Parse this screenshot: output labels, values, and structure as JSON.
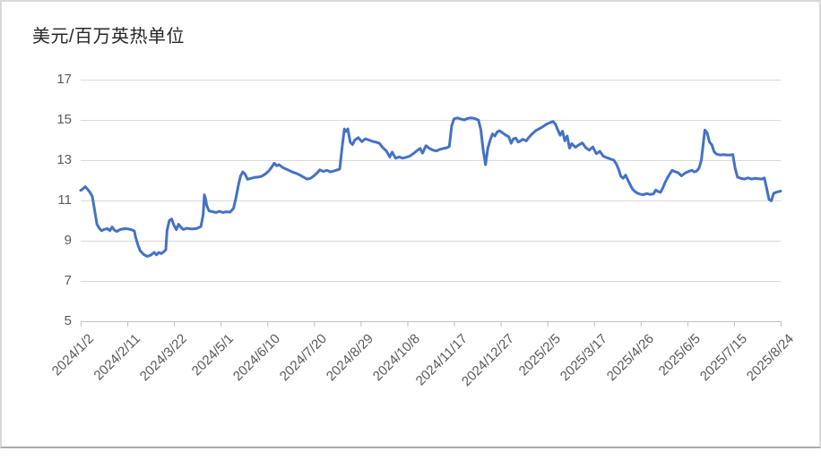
{
  "chart_data": {
    "type": "line",
    "title": "美元/百万英热单位",
    "xlabel": "",
    "ylabel": "",
    "grid": true,
    "legend": "none",
    "ylim": [
      5,
      17
    ],
    "y_ticks": [
      5,
      7,
      9,
      11,
      13,
      15,
      17
    ],
    "x_tick_labels": [
      "2024/1/2",
      "2024/2/11",
      "2024/3/22",
      "2024/5/1",
      "2024/6/10",
      "2024/7/20",
      "2024/8/29",
      "2024/10/8",
      "2024/11/17",
      "2024/12/27",
      "2025/2/5",
      "2025/3/17",
      "2025/4/26",
      "2025/6/5",
      "2025/7/15",
      "2025/8/24"
    ],
    "x_unit": "days_since_first_tick",
    "x_range_days": [
      0,
      600
    ],
    "line_color": "#4472C4",
    "grid_color": "#d9d9d9",
    "axis_color": "#bfbfbf",
    "label_color": "#595959",
    "points": [
      [
        0,
        11.5
      ],
      [
        2,
        11.58
      ],
      [
        4,
        11.68
      ],
      [
        6,
        11.55
      ],
      [
        8,
        11.4
      ],
      [
        10,
        11.2
      ],
      [
        12,
        10.5
      ],
      [
        14,
        9.82
      ],
      [
        16,
        9.62
      ],
      [
        18,
        9.5
      ],
      [
        20,
        9.56
      ],
      [
        23,
        9.6
      ],
      [
        25,
        9.5
      ],
      [
        27,
        9.68
      ],
      [
        29,
        9.52
      ],
      [
        31,
        9.46
      ],
      [
        34,
        9.56
      ],
      [
        38,
        9.6
      ],
      [
        41,
        9.58
      ],
      [
        44,
        9.54
      ],
      [
        46,
        9.48
      ],
      [
        47,
        9.2
      ],
      [
        49,
        8.8
      ],
      [
        51,
        8.5
      ],
      [
        54,
        8.32
      ],
      [
        57,
        8.22
      ],
      [
        60,
        8.28
      ],
      [
        63,
        8.42
      ],
      [
        65,
        8.3
      ],
      [
        67,
        8.42
      ],
      [
        69,
        8.36
      ],
      [
        71,
        8.44
      ],
      [
        73,
        8.55
      ],
      [
        74,
        9.5
      ],
      [
        76,
        10.0
      ],
      [
        78,
        10.08
      ],
      [
        80,
        9.76
      ],
      [
        82,
        9.55
      ],
      [
        84,
        9.82
      ],
      [
        86,
        9.66
      ],
      [
        88,
        9.56
      ],
      [
        91,
        9.62
      ],
      [
        95,
        9.58
      ],
      [
        99,
        9.6
      ],
      [
        103,
        9.7
      ],
      [
        105,
        10.3
      ],
      [
        106,
        11.28
      ],
      [
        107,
        11.1
      ],
      [
        108,
        10.75
      ],
      [
        110,
        10.48
      ],
      [
        113,
        10.44
      ],
      [
        116,
        10.4
      ],
      [
        119,
        10.46
      ],
      [
        122,
        10.4
      ],
      [
        125,
        10.44
      ],
      [
        128,
        10.42
      ],
      [
        131,
        10.6
      ],
      [
        133,
        11.1
      ],
      [
        135,
        11.7
      ],
      [
        137,
        12.2
      ],
      [
        139,
        12.42
      ],
      [
        141,
        12.3
      ],
      [
        143,
        12.05
      ],
      [
        146,
        12.1
      ],
      [
        149,
        12.14
      ],
      [
        152,
        12.16
      ],
      [
        155,
        12.2
      ],
      [
        158,
        12.3
      ],
      [
        161,
        12.45
      ],
      [
        163,
        12.6
      ],
      [
        166,
        12.85
      ],
      [
        168,
        12.72
      ],
      [
        170,
        12.78
      ],
      [
        173,
        12.64
      ],
      [
        176,
        12.56
      ],
      [
        179,
        12.48
      ],
      [
        182,
        12.4
      ],
      [
        185,
        12.34
      ],
      [
        188,
        12.26
      ],
      [
        191,
        12.16
      ],
      [
        194,
        12.06
      ],
      [
        197,
        12.1
      ],
      [
        200,
        12.22
      ],
      [
        203,
        12.38
      ],
      [
        205,
        12.52
      ],
      [
        208,
        12.44
      ],
      [
        211,
        12.5
      ],
      [
        214,
        12.42
      ],
      [
        217,
        12.46
      ],
      [
        220,
        12.52
      ],
      [
        222,
        12.56
      ],
      [
        224,
        13.6
      ],
      [
        226,
        14.55
      ],
      [
        227,
        14.42
      ],
      [
        229,
        14.55
      ],
      [
        231,
        13.9
      ],
      [
        233,
        13.78
      ],
      [
        235,
        14.0
      ],
      [
        238,
        14.12
      ],
      [
        241,
        13.92
      ],
      [
        244,
        14.06
      ],
      [
        247,
        14.0
      ],
      [
        250,
        13.94
      ],
      [
        253,
        13.9
      ],
      [
        256,
        13.84
      ],
      [
        259,
        13.62
      ],
      [
        262,
        13.46
      ],
      [
        265,
        13.16
      ],
      [
        267,
        13.4
      ],
      [
        270,
        13.1
      ],
      [
        273,
        13.16
      ],
      [
        276,
        13.1
      ],
      [
        279,
        13.14
      ],
      [
        282,
        13.2
      ],
      [
        285,
        13.32
      ],
      [
        288,
        13.46
      ],
      [
        291,
        13.58
      ],
      [
        293,
        13.35
      ],
      [
        296,
        13.72
      ],
      [
        299,
        13.58
      ],
      [
        302,
        13.5
      ],
      [
        305,
        13.46
      ],
      [
        308,
        13.54
      ],
      [
        311,
        13.58
      ],
      [
        314,
        13.62
      ],
      [
        316,
        13.68
      ],
      [
        318,
        14.7
      ],
      [
        320,
        15.05
      ],
      [
        323,
        15.1
      ],
      [
        326,
        15.04
      ],
      [
        329,
        15.0
      ],
      [
        331,
        15.06
      ],
      [
        334,
        15.1
      ],
      [
        337,
        15.08
      ],
      [
        339,
        15.04
      ],
      [
        341,
        14.98
      ],
      [
        343,
        14.5
      ],
      [
        345,
        13.5
      ],
      [
        347,
        12.78
      ],
      [
        349,
        13.6
      ],
      [
        351,
        14.0
      ],
      [
        353,
        14.3
      ],
      [
        355,
        14.2
      ],
      [
        357,
        14.4
      ],
      [
        359,
        14.46
      ],
      [
        361,
        14.38
      ],
      [
        364,
        14.26
      ],
      [
        367,
        14.16
      ],
      [
        369,
        13.84
      ],
      [
        371,
        14.06
      ],
      [
        373,
        14.1
      ],
      [
        375,
        13.9
      ],
      [
        377,
        13.96
      ],
      [
        379,
        14.04
      ],
      [
        382,
        13.96
      ],
      [
        384,
        14.12
      ],
      [
        387,
        14.3
      ],
      [
        390,
        14.46
      ],
      [
        393,
        14.56
      ],
      [
        396,
        14.66
      ],
      [
        399,
        14.78
      ],
      [
        402,
        14.86
      ],
      [
        405,
        14.92
      ],
      [
        407,
        14.78
      ],
      [
        409,
        14.5
      ],
      [
        411,
        14.24
      ],
      [
        413,
        14.44
      ],
      [
        415,
        13.96
      ],
      [
        417,
        14.2
      ],
      [
        419,
        13.6
      ],
      [
        421,
        13.82
      ],
      [
        424,
        13.64
      ],
      [
        427,
        13.76
      ],
      [
        430,
        13.86
      ],
      [
        433,
        13.62
      ],
      [
        436,
        13.5
      ],
      [
        439,
        13.66
      ],
      [
        442,
        13.32
      ],
      [
        445,
        13.44
      ],
      [
        448,
        13.2
      ],
      [
        451,
        13.12
      ],
      [
        454,
        13.06
      ],
      [
        457,
        13.0
      ],
      [
        459,
        12.82
      ],
      [
        461,
        12.56
      ],
      [
        463,
        12.2
      ],
      [
        465,
        12.1
      ],
      [
        467,
        12.26
      ],
      [
        470,
        11.9
      ],
      [
        473,
        11.56
      ],
      [
        476,
        11.4
      ],
      [
        479,
        11.32
      ],
      [
        482,
        11.28
      ],
      [
        485,
        11.34
      ],
      [
        488,
        11.3
      ],
      [
        491,
        11.32
      ],
      [
        493,
        11.52
      ],
      [
        495,
        11.44
      ],
      [
        497,
        11.4
      ],
      [
        499,
        11.62
      ],
      [
        501,
        11.9
      ],
      [
        503,
        12.12
      ],
      [
        505,
        12.32
      ],
      [
        507,
        12.5
      ],
      [
        509,
        12.44
      ],
      [
        512,
        12.38
      ],
      [
        515,
        12.22
      ],
      [
        518,
        12.36
      ],
      [
        521,
        12.44
      ],
      [
        524,
        12.5
      ],
      [
        526,
        12.42
      ],
      [
        528,
        12.46
      ],
      [
        530,
        12.6
      ],
      [
        532,
        13.0
      ],
      [
        534,
        14.0
      ],
      [
        535,
        14.5
      ],
      [
        537,
        14.35
      ],
      [
        539,
        13.9
      ],
      [
        541,
        13.76
      ],
      [
        543,
        13.42
      ],
      [
        545,
        13.3
      ],
      [
        548,
        13.26
      ],
      [
        551,
        13.28
      ],
      [
        554,
        13.26
      ],
      [
        557,
        13.26
      ],
      [
        559,
        13.28
      ],
      [
        561,
        12.6
      ],
      [
        563,
        12.16
      ],
      [
        566,
        12.1
      ],
      [
        569,
        12.06
      ],
      [
        572,
        12.12
      ],
      [
        575,
        12.06
      ],
      [
        578,
        12.1
      ],
      [
        581,
        12.08
      ],
      [
        584,
        12.06
      ],
      [
        586,
        12.12
      ],
      [
        588,
        11.6
      ],
      [
        590,
        11.05
      ],
      [
        592,
        10.98
      ],
      [
        594,
        11.36
      ],
      [
        597,
        11.42
      ],
      [
        600,
        11.46
      ]
    ]
  }
}
